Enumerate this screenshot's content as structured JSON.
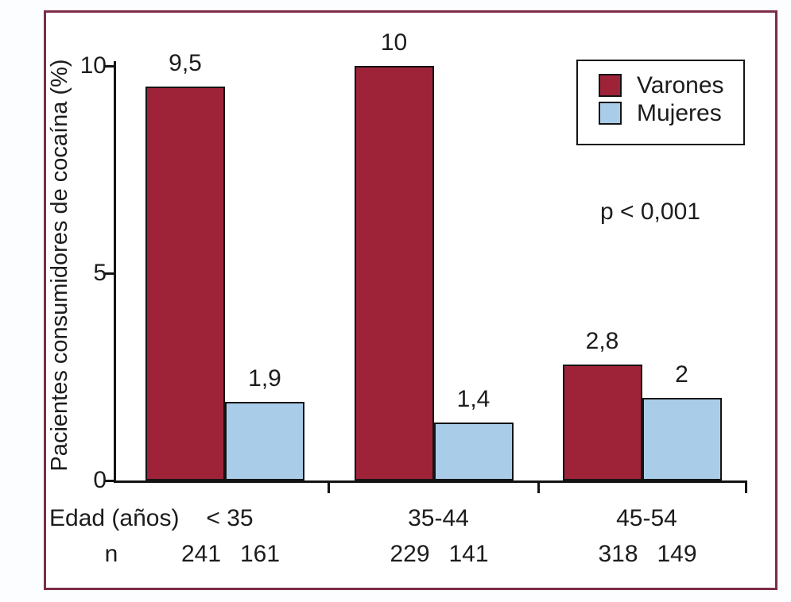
{
  "figure": {
    "frame_border_color": "#7d2d45",
    "background_color": "#ffffff"
  },
  "chart_data": {
    "type": "bar",
    "title": "",
    "ylabel": "Pacientes consumidores de cocaína (%)",
    "xlabel": "Edad (años)",
    "n_row_label": "n",
    "ylim": [
      0,
      10
    ],
    "yticks": [
      "0",
      "5",
      "10"
    ],
    "grid": false,
    "legend_position": "top-right",
    "annotation": "p < 0,001",
    "categories": [
      "< 35",
      "35-44",
      "45-54"
    ],
    "series": [
      {
        "name": "Varones",
        "color": "#9e2339",
        "values": [
          9.5,
          10,
          2.8
        ],
        "value_labels": [
          "9,5",
          "10",
          "2,8"
        ],
        "n_values": [
          "241",
          "229",
          "318"
        ]
      },
      {
        "name": "Mujeres",
        "color": "#a9cce9",
        "values": [
          1.9,
          1.4,
          2
        ],
        "value_labels": [
          "1,9",
          "1,4",
          "2"
        ],
        "n_values": [
          "161",
          "141",
          "149"
        ]
      }
    ]
  }
}
